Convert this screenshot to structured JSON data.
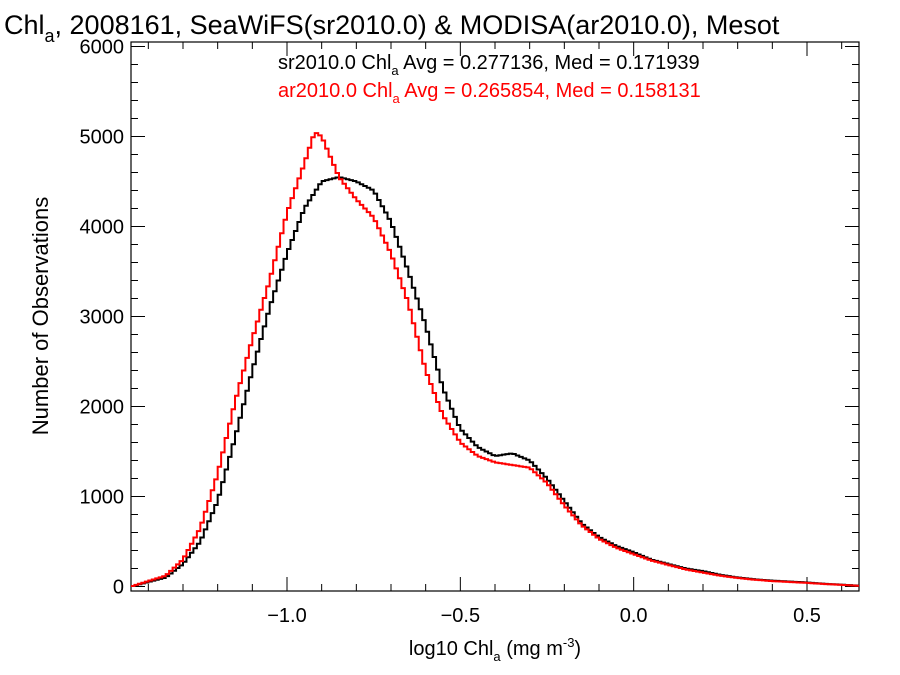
{
  "title": {
    "main": "Chl",
    "sub": "a",
    "rest": ", 2008161, SeaWiFS(sr2010.0) & MODISA(ar2010.0), Mesot"
  },
  "xlabel": {
    "pre": "log10 Chl",
    "sub": "a",
    "mid": " (mg m",
    "sup": "-3",
    "post": ")"
  },
  "ylabel": "Number of Observations",
  "legend": [
    {
      "pre": "sr2010.0 Chl",
      "sub": "a",
      "post": " Avg = 0.277136, Med = 0.171939",
      "color": "#000000"
    },
    {
      "pre": "ar2010.0 Chl",
      "sub": "a",
      "post": " Avg = 0.265854, Med = 0.158131",
      "color": "#ff0000"
    }
  ],
  "chart_data": {
    "type": "line",
    "step": true,
    "xlim": [
      -1.45,
      0.65
    ],
    "ylim": [
      -50,
      6050
    ],
    "xticks": [
      {
        "v": -1.0,
        "label": "−1.0"
      },
      {
        "v": -0.5,
        "label": "−0.5"
      },
      {
        "v": 0.0,
        "label": "0.0"
      },
      {
        "v": 0.5,
        "label": "0.5"
      }
    ],
    "yticks": [
      {
        "v": 0,
        "label": "0"
      },
      {
        "v": 1000,
        "label": "1000"
      },
      {
        "v": 2000,
        "label": "2000"
      },
      {
        "v": 3000,
        "label": "3000"
      },
      {
        "v": 4000,
        "label": "4000"
      },
      {
        "v": 5000,
        "label": "5000"
      },
      {
        "v": 6000,
        "label": "6000"
      }
    ],
    "series": [
      {
        "name": "sr2010.0",
        "color": "#000000",
        "points": [
          [
            -1.45,
            0
          ],
          [
            -1.4,
            50
          ],
          [
            -1.35,
            100
          ],
          [
            -1.3,
            250
          ],
          [
            -1.25,
            500
          ],
          [
            -1.2,
            950
          ],
          [
            -1.15,
            1650
          ],
          [
            -1.1,
            2400
          ],
          [
            -1.05,
            3100
          ],
          [
            -1.0,
            3700
          ],
          [
            -0.95,
            4200
          ],
          [
            -0.9,
            4500
          ],
          [
            -0.85,
            4550
          ],
          [
            -0.8,
            4500
          ],
          [
            -0.75,
            4400
          ],
          [
            -0.7,
            4050
          ],
          [
            -0.65,
            3500
          ],
          [
            -0.6,
            2900
          ],
          [
            -0.55,
            2200
          ],
          [
            -0.5,
            1750
          ],
          [
            -0.45,
            1550
          ],
          [
            -0.4,
            1450
          ],
          [
            -0.35,
            1480
          ],
          [
            -0.3,
            1400
          ],
          [
            -0.25,
            1200
          ],
          [
            -0.2,
            950
          ],
          [
            -0.15,
            700
          ],
          [
            -0.1,
            550
          ],
          [
            -0.05,
            450
          ],
          [
            0.0,
            380
          ],
          [
            0.05,
            300
          ],
          [
            0.1,
            250
          ],
          [
            0.15,
            200
          ],
          [
            0.2,
            170
          ],
          [
            0.25,
            130
          ],
          [
            0.3,
            100
          ],
          [
            0.35,
            80
          ],
          [
            0.4,
            65
          ],
          [
            0.45,
            55
          ],
          [
            0.5,
            45
          ],
          [
            0.55,
            30
          ],
          [
            0.6,
            20
          ],
          [
            0.65,
            10
          ]
        ]
      },
      {
        "name": "ar2010.0",
        "color": "#ff0000",
        "points": [
          [
            -1.45,
            0
          ],
          [
            -1.4,
            60
          ],
          [
            -1.35,
            120
          ],
          [
            -1.3,
            300
          ],
          [
            -1.25,
            650
          ],
          [
            -1.2,
            1250
          ],
          [
            -1.15,
            2050
          ],
          [
            -1.1,
            2750
          ],
          [
            -1.05,
            3400
          ],
          [
            -1.0,
            4150
          ],
          [
            -0.95,
            4700
          ],
          [
            -0.92,
            5050
          ],
          [
            -0.9,
            5000
          ],
          [
            -0.85,
            4550
          ],
          [
            -0.8,
            4300
          ],
          [
            -0.75,
            4100
          ],
          [
            -0.7,
            3700
          ],
          [
            -0.65,
            3150
          ],
          [
            -0.6,
            2400
          ],
          [
            -0.55,
            1900
          ],
          [
            -0.5,
            1600
          ],
          [
            -0.45,
            1450
          ],
          [
            -0.4,
            1380
          ],
          [
            -0.35,
            1350
          ],
          [
            -0.3,
            1320
          ],
          [
            -0.25,
            1150
          ],
          [
            -0.2,
            900
          ],
          [
            -0.15,
            680
          ],
          [
            -0.1,
            530
          ],
          [
            -0.05,
            430
          ],
          [
            0.0,
            360
          ],
          [
            0.05,
            290
          ],
          [
            0.1,
            240
          ],
          [
            0.15,
            190
          ],
          [
            0.2,
            155
          ],
          [
            0.25,
            120
          ],
          [
            0.3,
            95
          ],
          [
            0.35,
            75
          ],
          [
            0.4,
            60
          ],
          [
            0.45,
            50
          ],
          [
            0.5,
            40
          ],
          [
            0.55,
            28
          ],
          [
            0.6,
            18
          ],
          [
            0.65,
            8
          ]
        ]
      }
    ]
  }
}
